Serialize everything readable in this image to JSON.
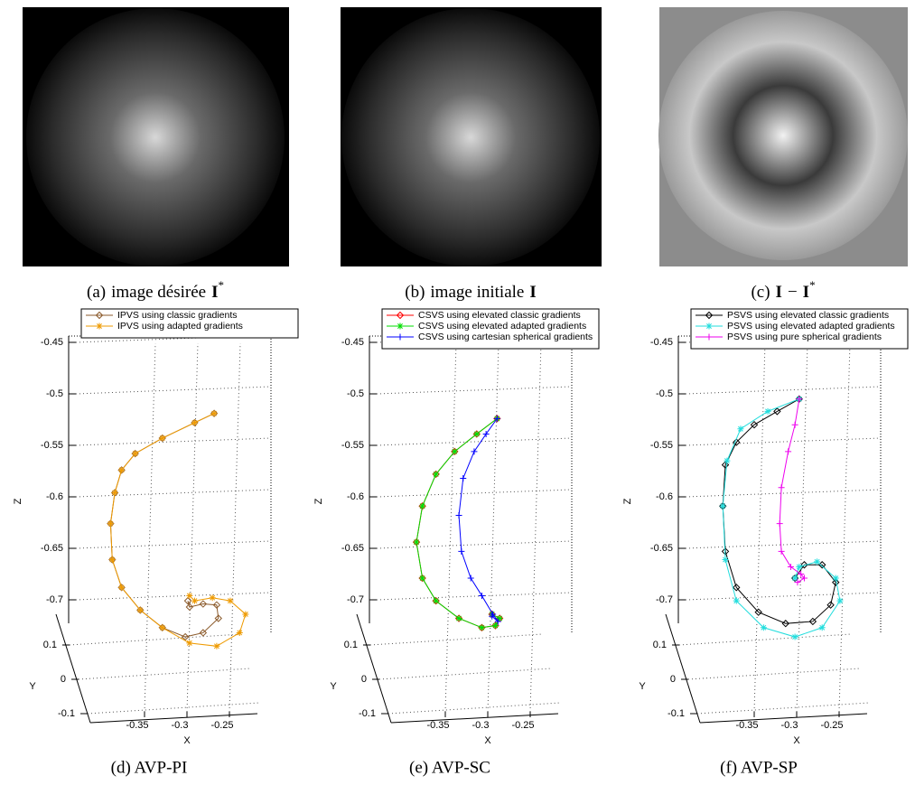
{
  "images": [
    {
      "caption": {
        "label": "(a)",
        "parts": [
          {
            "text": "image désirée"
          },
          {
            "text": "I",
            "bold": true
          },
          {
            "text": "*",
            "sup": true
          }
        ]
      }
    },
    {
      "caption": {
        "label": "(b)",
        "parts": [
          {
            "text": "image initiale"
          },
          {
            "text": "I",
            "bold": true
          }
        ]
      }
    },
    {
      "caption": {
        "label": "(c)",
        "parts": [
          {
            "text": "I",
            "bold": true
          },
          {
            "text": "−"
          },
          {
            "text": "I",
            "bold": true
          },
          {
            "text": "*",
            "sup": true
          }
        ]
      }
    }
  ],
  "chart_data": [
    {
      "type": "line3d",
      "caption": "(d)  AVP-PI",
      "xlabel": "X",
      "ylabel": "Y",
      "zlabel": "Z",
      "xlim": [
        -0.4,
        -0.22
      ],
      "xticks": [
        -0.35,
        -0.3,
        -0.25
      ],
      "ylim": [
        -0.1,
        0.1
      ],
      "yticks": [
        0.1,
        0,
        -0.1
      ],
      "zlim": [
        -0.75,
        -0.45
      ],
      "zticks": [
        -0.45,
        -0.5,
        -0.55,
        -0.6,
        -0.65,
        -0.7
      ],
      "grid": true,
      "legend": "upper left",
      "series": [
        {
          "name": "IPVS using classic gradients",
          "color": "#8b5a2b",
          "marker": "diamond",
          "x": [
            -0.268,
            -0.291,
            -0.329,
            -0.361,
            -0.377,
            -0.385,
            -0.39,
            -0.388,
            -0.377,
            -0.355,
            -0.329,
            -0.302,
            -0.281,
            -0.263,
            -0.265,
            -0.281,
            -0.297,
            -0.299
          ],
          "values": [
            -0.519,
            -0.528,
            -0.543,
            -0.558,
            -0.574,
            -0.596,
            -0.626,
            -0.661,
            -0.688,
            -0.71,
            -0.727,
            -0.736,
            -0.732,
            -0.718,
            -0.705,
            -0.704,
            -0.707,
            -0.701
          ]
        },
        {
          "name": "IPVS using adapted gradients",
          "color": "#ee9a00",
          "marker": "asterisk",
          "x": [
            -0.268,
            -0.291,
            -0.329,
            -0.361,
            -0.377,
            -0.385,
            -0.39,
            -0.388,
            -0.377,
            -0.355,
            -0.329,
            -0.297,
            -0.265,
            -0.238,
            -0.231,
            -0.249,
            -0.27,
            -0.291,
            -0.297
          ],
          "values": [
            -0.519,
            -0.528,
            -0.543,
            -0.558,
            -0.574,
            -0.596,
            -0.626,
            -0.661,
            -0.688,
            -0.71,
            -0.727,
            -0.742,
            -0.745,
            -0.732,
            -0.714,
            -0.701,
            -0.698,
            -0.701,
            -0.696
          ]
        }
      ]
    },
    {
      "type": "line3d",
      "caption": "(e)  AVP-SC",
      "xlabel": "X",
      "ylabel": "Y",
      "zlabel": "Z",
      "xlim": [
        -0.4,
        -0.22
      ],
      "xticks": [
        -0.35,
        -0.3,
        -0.25
      ],
      "ylim": [
        -0.1,
        0.1
      ],
      "yticks": [
        0.1,
        0,
        -0.1
      ],
      "zlim": [
        -0.75,
        -0.45
      ],
      "zticks": [
        -0.45,
        -0.5,
        -0.55,
        -0.6,
        -0.65,
        -0.7
      ],
      "grid": true,
      "legend": "upper left",
      "series": [
        {
          "name": "CSVS using elevated classic gradients",
          "color": "#ff0000",
          "marker": "diamond",
          "x": [
            -0.289,
            -0.313,
            -0.339,
            -0.361,
            -0.377,
            -0.384,
            -0.377,
            -0.361,
            -0.334,
            -0.307,
            -0.291,
            -0.286,
            -0.295
          ],
          "values": [
            -0.524,
            -0.539,
            -0.556,
            -0.578,
            -0.609,
            -0.644,
            -0.679,
            -0.701,
            -0.718,
            -0.727,
            -0.725,
            -0.718,
            -0.714
          ]
        },
        {
          "name": "CSVS using elevated adapted gradients",
          "color": "#00dd00",
          "marker": "asterisk",
          "x": [
            -0.289,
            -0.313,
            -0.339,
            -0.361,
            -0.377,
            -0.384,
            -0.377,
            -0.361,
            -0.334,
            -0.307,
            -0.291,
            -0.286,
            -0.295
          ],
          "values": [
            -0.524,
            -0.539,
            -0.556,
            -0.578,
            -0.609,
            -0.644,
            -0.679,
            -0.701,
            -0.718,
            -0.727,
            -0.725,
            -0.718,
            -0.714
          ]
        },
        {
          "name": "CSVS using cartesian spherical gradients",
          "color": "#0000ff",
          "marker": "plus",
          "x": [
            -0.289,
            -0.302,
            -0.316,
            -0.329,
            -0.334,
            -0.331,
            -0.32,
            -0.307,
            -0.294,
            -0.288,
            -0.295
          ],
          "values": [
            -0.524,
            -0.539,
            -0.556,
            -0.582,
            -0.618,
            -0.653,
            -0.679,
            -0.696,
            -0.714,
            -0.721,
            -0.716
          ]
        }
      ]
    },
    {
      "type": "line3d",
      "caption": "(f)  AVP-SP",
      "xlabel": "X",
      "ylabel": "Y",
      "zlabel": "Z",
      "xlim": [
        -0.4,
        -0.22
      ],
      "xticks": [
        -0.35,
        -0.3,
        -0.25
      ],
      "ylim": [
        -0.1,
        0.1
      ],
      "yticks": [
        0.1,
        0,
        -0.1
      ],
      "zlim": [
        -0.75,
        -0.45
      ],
      "zticks": [
        -0.45,
        -0.5,
        -0.55,
        -0.6,
        -0.65,
        -0.7
      ],
      "grid": true,
      "legend": "upper left",
      "series": [
        {
          "name": "PSVS using elevated classic gradients",
          "color": "#000000",
          "marker": "diamond",
          "x": [
            -0.297,
            -0.323,
            -0.35,
            -0.371,
            -0.384,
            -0.387,
            -0.384,
            -0.371,
            -0.345,
            -0.313,
            -0.281,
            -0.26,
            -0.254,
            -0.27,
            -0.291,
            -0.302
          ],
          "values": [
            -0.505,
            -0.517,
            -0.53,
            -0.547,
            -0.569,
            -0.609,
            -0.653,
            -0.688,
            -0.712,
            -0.723,
            -0.721,
            -0.705,
            -0.683,
            -0.666,
            -0.666,
            -0.679
          ]
        },
        {
          "name": "PSVS using elevated adapted gradients",
          "color": "#22dddd",
          "marker": "asterisk",
          "x": [
            -0.297,
            -0.334,
            -0.366,
            -0.382,
            -0.387,
            -0.384,
            -0.371,
            -0.339,
            -0.302,
            -0.27,
            -0.249,
            -0.254,
            -0.276,
            -0.297,
            -0.302
          ],
          "values": [
            -0.505,
            -0.517,
            -0.534,
            -0.565,
            -0.609,
            -0.661,
            -0.701,
            -0.727,
            -0.736,
            -0.727,
            -0.701,
            -0.679,
            -0.663,
            -0.668,
            -0.679
          ]
        },
        {
          "name": "PSVS using pure spherical gradients",
          "color": "#ee00ee",
          "marker": "plus",
          "x": [
            -0.297,
            -0.302,
            -0.31,
            -0.318,
            -0.32,
            -0.318,
            -0.307,
            -0.295,
            -0.291,
            -0.299
          ],
          "values": [
            -0.505,
            -0.53,
            -0.556,
            -0.591,
            -0.626,
            -0.653,
            -0.668,
            -0.675,
            -0.679,
            -0.683
          ]
        }
      ]
    }
  ]
}
